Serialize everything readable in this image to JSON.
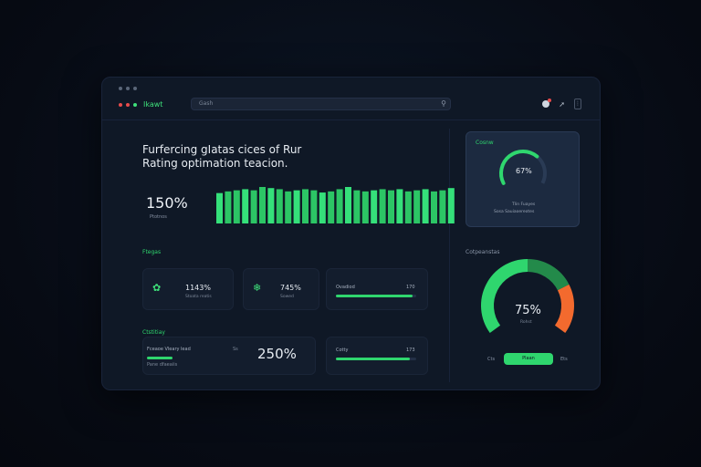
{
  "app": {
    "name": "Ikawt"
  },
  "search": {
    "placeholder": "Gash"
  },
  "hero": {
    "eyebrow": "",
    "title_line1": "Furfercing gIatas cices of Rur",
    "title_line2": "Rating optimation teacion.",
    "stat_value": "150%",
    "stat_sub": "Ptotnos"
  },
  "hero_bars": {
    "values": [
      55,
      58,
      60,
      62,
      60,
      66,
      64,
      62,
      58,
      60,
      62,
      60,
      56,
      58,
      62,
      66,
      60,
      58,
      60,
      62,
      60,
      62,
      58,
      60,
      62,
      58,
      60,
      64
    ]
  },
  "sections": {
    "metrics_title": "Ftegas",
    "activity_title": "Ctstitiay",
    "gauge_title": "Cotpeanstas"
  },
  "cards": [
    {
      "value": "1143%",
      "sub": "Stoata reatis",
      "icon": "leaf-icon"
    },
    {
      "value": "745%",
      "sub": "Sowed",
      "icon": "drop-icon"
    }
  ],
  "progress_cards": [
    {
      "label": "Ovadiod",
      "value": "170",
      "fill": 0.95
    },
    {
      "label": "Cotty",
      "value": "173",
      "fill": 0.92
    }
  ],
  "activity": {
    "line1": "Fceaoe Vleary lead",
    "line2": "Pane dfaeaiis",
    "stat": "250%"
  },
  "mini_gauge": {
    "title": "Cosnw",
    "value": "67%",
    "foot1": "Tlin Fuayes",
    "foot2": "Sosa Sauiaoereotes",
    "fill": 0.67
  },
  "big_gauge": {
    "value": "75%",
    "sub": "Rohst",
    "button": "Plaan",
    "left_label": "Cts",
    "right_label": "Ets",
    "fill": 0.75
  },
  "colors": {
    "accent": "#2fd66e",
    "warn": "#f36a2e",
    "window": "#0f1826"
  }
}
